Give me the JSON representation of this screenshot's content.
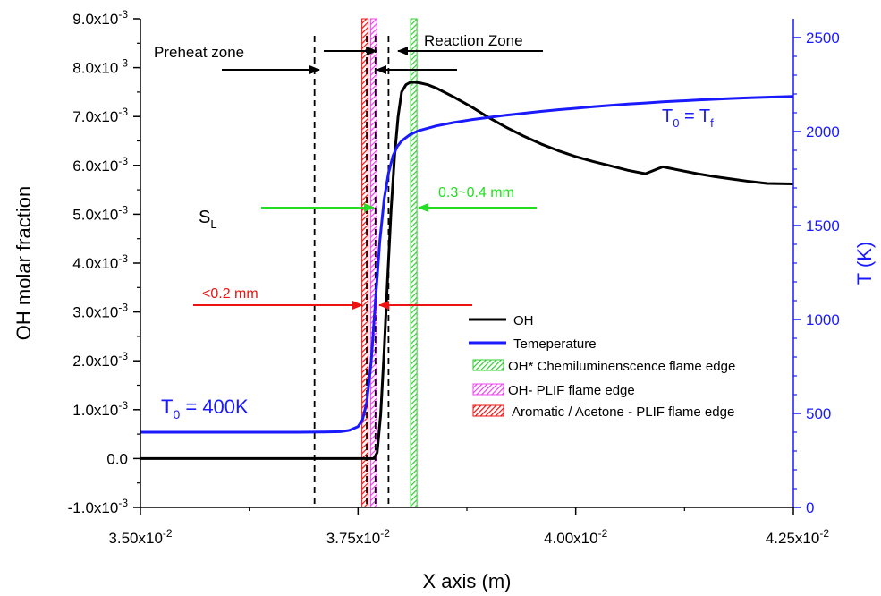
{
  "chart_data": {
    "type": "line",
    "xlabel": "X axis (m)",
    "ylabel_left": "OH molar fraction",
    "ylabel_right": "T (K)",
    "xlim": [
      0.035,
      0.0425
    ],
    "ylim_left": [
      -0.001,
      0.009
    ],
    "ylim_right": [
      0,
      2600
    ],
    "x_ticks": [
      {
        "value": 0.035,
        "mant": "3.50x10",
        "exp": "-2"
      },
      {
        "value": 0.0375,
        "mant": "3.75x10",
        "exp": "-2"
      },
      {
        "value": 0.04,
        "mant": "4.00x10",
        "exp": "-2"
      },
      {
        "value": 0.0425,
        "mant": "4.25x10",
        "exp": "-2"
      }
    ],
    "y_left_ticks": [
      {
        "value": -0.001,
        "mant": "-1.0x10",
        "exp": "-3"
      },
      {
        "value": 0.0,
        "mant": "0.0",
        "exp": ""
      },
      {
        "value": 0.001,
        "mant": "1.0x10",
        "exp": "-3"
      },
      {
        "value": 0.002,
        "mant": "2.0x10",
        "exp": "-3"
      },
      {
        "value": 0.003,
        "mant": "3.0x10",
        "exp": "-3"
      },
      {
        "value": 0.004,
        "mant": "4.0x10",
        "exp": "-3"
      },
      {
        "value": 0.005,
        "mant": "5.0x10",
        "exp": "-3"
      },
      {
        "value": 0.006,
        "mant": "6.0x10",
        "exp": "-3"
      },
      {
        "value": 0.007,
        "mant": "7.0x10",
        "exp": "-3"
      },
      {
        "value": 0.008,
        "mant": "8.0x10",
        "exp": "-3"
      },
      {
        "value": 0.009,
        "mant": "9.0x10",
        "exp": "-3"
      }
    ],
    "y_right_ticks": [
      0,
      500,
      1000,
      1500,
      2000,
      2500
    ],
    "series": [
      {
        "name": "OH",
        "axis": "left",
        "color": "#000000",
        "x": [
          0.035,
          0.0376,
          0.03768,
          0.03772,
          0.03776,
          0.0378,
          0.03784,
          0.03788,
          0.03792,
          0.03796,
          0.038,
          0.03805,
          0.0381,
          0.03815,
          0.0382,
          0.0383,
          0.0384,
          0.0386,
          0.0388,
          0.039,
          0.0392,
          0.0394,
          0.0396,
          0.0398,
          0.04,
          0.0402,
          0.0404,
          0.0406,
          0.0408,
          0.041,
          0.0412,
          0.0414,
          0.0416,
          0.0418,
          0.042,
          0.0422,
          0.0425
        ],
        "y": [
          0.0,
          0.0,
          0.0,
          0.00012,
          0.0009,
          0.0022,
          0.0037,
          0.0051,
          0.0062,
          0.007,
          0.0075,
          0.00765,
          0.0077,
          0.0077,
          0.00769,
          0.00765,
          0.00758,
          0.0074,
          0.0072,
          0.00698,
          0.00678,
          0.0066,
          0.00644,
          0.0063,
          0.00618,
          0.00608,
          0.00599,
          0.0059,
          0.00583,
          0.00597,
          0.0059,
          0.00583,
          0.00577,
          0.00572,
          0.00567,
          0.00563,
          0.00562
        ]
      },
      {
        "name": "Temeperature",
        "axis": "right",
        "color": "#1a1aff",
        "x": [
          0.035,
          0.0361,
          0.0368,
          0.0371,
          0.0373,
          0.0374,
          0.0375,
          0.03755,
          0.0376,
          0.03765,
          0.0377,
          0.03775,
          0.0378,
          0.03785,
          0.0379,
          0.03795,
          0.038,
          0.0381,
          0.0382,
          0.0384,
          0.0386,
          0.0388,
          0.039,
          0.0392,
          0.0394,
          0.0396,
          0.0398,
          0.04,
          0.0402,
          0.0404,
          0.0406,
          0.0408,
          0.041,
          0.0412,
          0.0414,
          0.0416,
          0.0418,
          0.042,
          0.0422,
          0.0425
        ],
        "y": [
          400,
          400,
          400,
          401,
          403,
          410,
          430,
          465,
          560,
          770,
          1100,
          1420,
          1640,
          1780,
          1870,
          1920,
          1950,
          1985,
          2005,
          2030,
          2048,
          2063,
          2075,
          2087,
          2097,
          2107,
          2116,
          2124,
          2132,
          2139,
          2146,
          2152,
          2158,
          2163,
          2168,
          2172,
          2176,
          2180,
          2183,
          2187
        ]
      }
    ],
    "vlines": [
      0.037,
      0.0376,
      0.0377,
      0.03785
    ],
    "bands": [
      {
        "name": "OH* Chemiluminenscence flame edge",
        "x": 0.03814,
        "color": "#33cc33"
      },
      {
        "name": "OH- PLIF flame edge",
        "x": 0.03768,
        "color": "#ee44ee"
      },
      {
        "name": "Aromatic / Acetone - PLIF flame edge",
        "x": 0.03758,
        "color": "#ee1111"
      }
    ],
    "annotations": {
      "preheat": "Preheat zone",
      "reaction": "Reaction Zone",
      "sl_main": "S",
      "sl_sub": "L",
      "dist_green": "0.3~0.4 mm",
      "dist_red": "<0.2 mm",
      "t0f_a": "T",
      "t0f_a_sub": "0",
      "t0f_b": " = T",
      "t0f_b_sub": "f",
      "t0_a": "T",
      "t0_a_sub": "0",
      "t0_b": " = 400K"
    },
    "legend_position": "bottom-right"
  }
}
